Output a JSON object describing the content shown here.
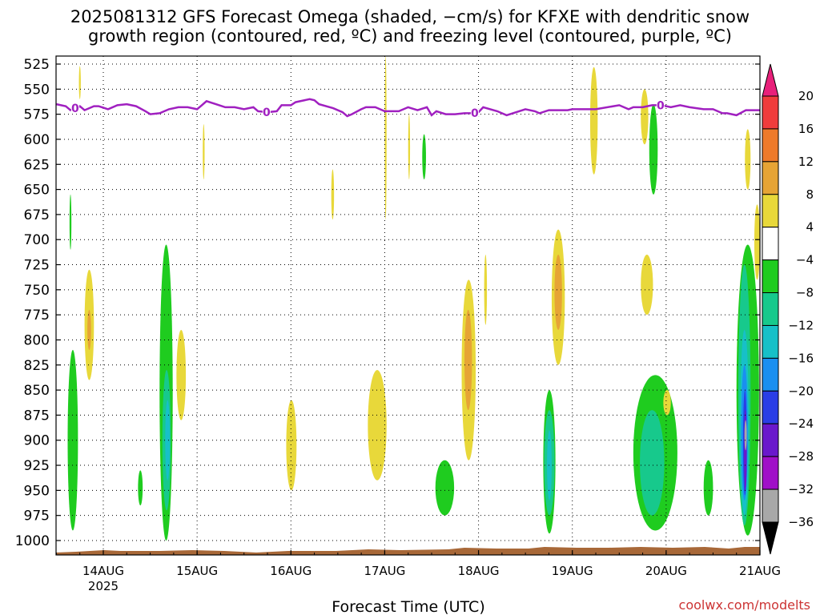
{
  "chart_data": {
    "type": "heatmap",
    "title_lines": [
      "2025081312 GFS Forecast Omega (shaded, −cm/s) for KFXE with dendritic snow",
      "growth region (contoured, red, ºC) and freezing level (contoured, purple, ºC)"
    ],
    "xlabel": "Forecast Time (UTC)",
    "x_ticks": [
      "14AUG",
      "15AUG",
      "16AUG",
      "17AUG",
      "18AUG",
      "19AUG",
      "20AUG",
      "21AUG"
    ],
    "x_tick_sublabel": "2025",
    "xlim_days": [
      13.5,
      21.0
    ],
    "y_ticks": [
      525,
      550,
      575,
      600,
      625,
      650,
      675,
      700,
      725,
      750,
      775,
      800,
      825,
      850,
      875,
      900,
      925,
      950,
      975,
      1000
    ],
    "ylim_hpa": [
      517,
      1016
    ],
    "grid": true,
    "legend_position": "right colorbar",
    "colorbar": {
      "levels": [
        20,
        16,
        12,
        8,
        4,
        -4,
        -8,
        -12,
        -16,
        -20,
        -24,
        -28,
        -32,
        -36
      ],
      "level_labels": [
        "20",
        "16",
        "12",
        "8",
        "4",
        "−4",
        "−8",
        "−12",
        "−16",
        "−20",
        "−24",
        "−28",
        "−32",
        "−36"
      ],
      "colors": [
        "#e8207a",
        "#f03c3c",
        "#ee7a2a",
        "#e6a435",
        "#e8d83a",
        "#ffffff",
        "#1fcc1f",
        "#17c98c",
        "#17c0c8",
        "#1a8ff0",
        "#2a3ee6",
        "#6a18cc",
        "#a010c8",
        "#a8a8a8",
        "#000000"
      ]
    },
    "freezing_level": {
      "label": "0",
      "color": "#a020c0",
      "label_positions_day": [
        13.7,
        15.74,
        17.96,
        19.94
      ],
      "x_day": [
        13.5,
        13.6,
        13.65,
        13.75,
        13.8,
        13.9,
        13.95,
        14.05,
        14.15,
        14.25,
        14.35,
        14.45,
        14.5,
        14.6,
        14.7,
        14.8,
        14.9,
        15.0,
        15.05,
        15.1,
        15.2,
        15.3,
        15.4,
        15.5,
        15.6,
        15.65,
        15.75,
        15.85,
        15.9,
        16.0,
        16.05,
        16.2,
        16.25,
        16.3,
        16.45,
        16.55,
        16.6,
        16.65,
        16.75,
        16.8,
        16.9,
        17.0,
        17.1,
        17.15,
        17.25,
        17.35,
        17.45,
        17.5,
        17.55,
        17.65,
        17.75,
        17.85,
        17.95,
        18.0,
        18.05,
        18.2,
        18.3,
        18.5,
        18.6,
        18.65,
        18.75,
        18.95,
        19.0,
        19.05,
        19.15,
        19.25,
        19.5,
        19.6,
        19.65,
        19.75,
        19.85,
        19.95,
        20.05,
        20.15,
        20.25,
        20.4,
        20.5,
        20.6,
        20.65,
        20.75,
        20.85,
        21.0
      ],
      "p_hpa": [
        565,
        567,
        571,
        567,
        571,
        567,
        567,
        570,
        566,
        565,
        567,
        572,
        575,
        574,
        570,
        568,
        568,
        570,
        566,
        562,
        565,
        568,
        568,
        570,
        568,
        572,
        573,
        572,
        566,
        566,
        563,
        560,
        561,
        565,
        569,
        573,
        577,
        575,
        570,
        568,
        568,
        572,
        572,
        572,
        568,
        571,
        568,
        576,
        572,
        575,
        575,
        574,
        574,
        573,
        568,
        572,
        576,
        570,
        572,
        574,
        571,
        571,
        570,
        570,
        570,
        570,
        566,
        570,
        568,
        568,
        566,
        566,
        568,
        566,
        568,
        570,
        570,
        574,
        574,
        576,
        571,
        571
      ]
    },
    "shaded_regions": [
      {
        "class": "-4..-8",
        "color": "#1fcc1f",
        "x_day": [
          13.62,
          13.73
        ],
        "p_hpa": [
          810,
          990
        ]
      },
      {
        "class": "-4..-8",
        "color": "#1fcc1f",
        "x_day": [
          14.37,
          14.42
        ],
        "p_hpa": [
          930,
          965
        ]
      },
      {
        "class": "-4..-8",
        "color": "#1fcc1f",
        "x_day": [
          14.6,
          14.74
        ],
        "p_hpa": [
          705,
          1000
        ]
      },
      {
        "class": "-8..-12",
        "color": "#17c98c",
        "x_day": [
          14.63,
          14.72
        ],
        "p_hpa": [
          830,
          970
        ]
      },
      {
        "class": "-12..-16",
        "color": "#17c0c8",
        "x_day": [
          14.66,
          14.71
        ],
        "p_hpa": [
          860,
          940
        ]
      },
      {
        "class": "-4..-8",
        "color": "#1fcc1f",
        "x_day": [
          17.54,
          17.74
        ],
        "p_hpa": [
          920,
          975
        ]
      },
      {
        "class": "-4..-8",
        "color": "#1fcc1f",
        "x_day": [
          18.69,
          18.82
        ],
        "p_hpa": [
          850,
          993
        ]
      },
      {
        "class": "-8..-12",
        "color": "#17c98c",
        "x_day": [
          18.7,
          18.81
        ],
        "p_hpa": [
          870,
          975
        ]
      },
      {
        "class": "-12..-16",
        "color": "#17c0c8",
        "x_day": [
          18.73,
          18.78
        ],
        "p_hpa": [
          890,
          960
        ]
      },
      {
        "class": "-4..-8",
        "color": "#1fcc1f",
        "x_day": [
          19.65,
          20.12
        ],
        "p_hpa": [
          835,
          990
        ]
      },
      {
        "class": "-8..-12",
        "color": "#17c98c",
        "x_day": [
          19.72,
          19.98
        ],
        "p_hpa": [
          870,
          975
        ]
      },
      {
        "class": "-4..-8",
        "color": "#1fcc1f",
        "x_day": [
          20.4,
          20.5
        ],
        "p_hpa": [
          920,
          975
        ]
      },
      {
        "class": "-4..-8",
        "color": "#1fcc1f",
        "x_day": [
          19.82,
          19.91
        ],
        "p_hpa": [
          565,
          655
        ]
      },
      {
        "class": "-4..-8",
        "color": "#1fcc1f",
        "x_day": [
          17.4,
          17.44
        ],
        "p_hpa": [
          595,
          640
        ]
      },
      {
        "class": "-4..-8",
        "color": "#1fcc1f",
        "x_day": [
          13.64,
          13.66
        ],
        "p_hpa": [
          655,
          710
        ]
      },
      {
        "class": "-4..-8",
        "color": "#1fcc1f",
        "x_day": [
          20.75,
          20.99
        ],
        "p_hpa": [
          705,
          995
        ]
      },
      {
        "class": "-8..-12",
        "color": "#17c98c",
        "x_day": [
          20.77,
          20.9
        ],
        "p_hpa": [
          725,
          985
        ]
      },
      {
        "class": "-12..-16",
        "color": "#17c0c8",
        "x_day": [
          20.79,
          20.88
        ],
        "p_hpa": [
          790,
          975
        ]
      },
      {
        "class": "-16..-20",
        "color": "#1a8ff0",
        "x_day": [
          20.8,
          20.87
        ],
        "p_hpa": [
          825,
          960
        ]
      },
      {
        "class": "-20..-24",
        "color": "#2a3ee6",
        "x_day": [
          20.82,
          20.86
        ],
        "p_hpa": [
          850,
          955
        ]
      },
      {
        "class": "-24..-28",
        "color": "#6a18cc",
        "x_day": [
          20.83,
          20.86
        ],
        "p_hpa": [
          870,
          950
        ]
      },
      {
        "class": "<-36",
        "color": "#a8a8a8",
        "x_day": [
          20.835,
          20.86
        ],
        "p_hpa": [
          880,
          910
        ]
      },
      {
        "class": "4..8",
        "color": "#e8d83a",
        "x_day": [
          13.8,
          13.9
        ],
        "p_hpa": [
          730,
          840
        ]
      },
      {
        "class": "8..12",
        "color": "#e6a435",
        "x_day": [
          13.83,
          13.87
        ],
        "p_hpa": [
          770,
          810
        ]
      },
      {
        "class": "4..8",
        "color": "#e8d83a",
        "x_day": [
          14.78,
          14.88
        ],
        "p_hpa": [
          790,
          880
        ]
      },
      {
        "class": "4..8",
        "color": "#e8d83a",
        "x_day": [
          15.95,
          16.06
        ],
        "p_hpa": [
          860,
          950
        ]
      },
      {
        "class": "4..8",
        "color": "#e8d83a",
        "x_day": [
          16.43,
          16.46
        ],
        "p_hpa": [
          630,
          680
        ]
      },
      {
        "class": "4..8",
        "color": "#e8d83a",
        "x_day": [
          16.82,
          17.02
        ],
        "p_hpa": [
          830,
          940
        ]
      },
      {
        "class": "4..8",
        "color": "#e8d83a",
        "x_day": [
          17.82,
          17.97
        ],
        "p_hpa": [
          740,
          920
        ]
      },
      {
        "class": "8..12",
        "color": "#e6a435",
        "x_day": [
          17.85,
          17.93
        ],
        "p_hpa": [
          770,
          870
        ]
      },
      {
        "class": "4..8",
        "color": "#e8d83a",
        "x_day": [
          18.06,
          18.09
        ],
        "p_hpa": [
          715,
          785
        ]
      },
      {
        "class": "4..8",
        "color": "#e8d83a",
        "x_day": [
          18.78,
          18.92
        ],
        "p_hpa": [
          690,
          825
        ]
      },
      {
        "class": "8..12",
        "color": "#e6a435",
        "x_day": [
          18.81,
          18.89
        ],
        "p_hpa": [
          715,
          790
        ]
      },
      {
        "class": "4..8",
        "color": "#e8d83a",
        "x_day": [
          19.19,
          19.27
        ],
        "p_hpa": [
          528,
          635
        ]
      },
      {
        "class": "4..8",
        "color": "#e8d83a",
        "x_day": [
          19.73,
          19.81
        ],
        "p_hpa": [
          550,
          605
        ]
      },
      {
        "class": "4..8",
        "color": "#e8d83a",
        "x_day": [
          19.73,
          19.86
        ],
        "p_hpa": [
          715,
          775
        ]
      },
      {
        "class": "4..8",
        "color": "#e8d83a",
        "x_day": [
          19.97,
          20.05
        ],
        "p_hpa": [
          850,
          875
        ]
      },
      {
        "class": "4..8",
        "color": "#e8d83a",
        "x_day": [
          20.84,
          20.9
        ],
        "p_hpa": [
          590,
          650
        ]
      },
      {
        "class": "4..8",
        "color": "#e8d83a",
        "x_day": [
          20.94,
          21.0
        ],
        "p_hpa": [
          665,
          740
        ]
      },
      {
        "class": "4..8",
        "color": "#e8d83a",
        "x_day": [
          17.0,
          17.02
        ],
        "p_hpa": [
          517,
          680
        ]
      },
      {
        "class": "4..8",
        "color": "#e8d83a",
        "x_day": [
          17.25,
          17.27
        ],
        "p_hpa": [
          575,
          640
        ]
      },
      {
        "class": "4..8",
        "color": "#e8d83a",
        "x_day": [
          15.06,
          15.08
        ],
        "p_hpa": [
          585,
          640
        ]
      },
      {
        "class": "4..8",
        "color": "#e8d83a",
        "x_day": [
          13.74,
          13.76
        ],
        "p_hpa": [
          527,
          560
        ]
      }
    ],
    "terrain_color": "#a86838"
  },
  "credit": "coolwx.com/modelts"
}
